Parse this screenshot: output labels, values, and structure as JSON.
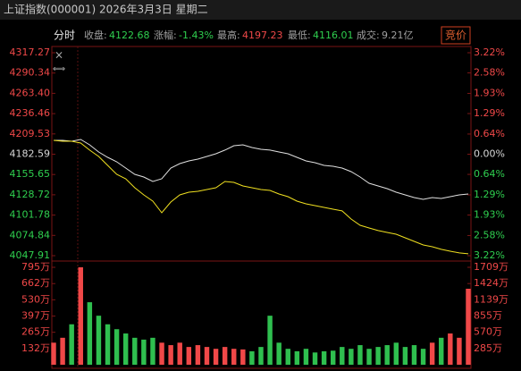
{
  "header": {
    "title": "上证指数(000001) 2026年3月3日 星期二"
  },
  "info": {
    "mode": "分时",
    "close_label": "收盘:",
    "close": "4122.68",
    "change_label": "涨幅:",
    "change": "-1.43%",
    "high_label": "最高:",
    "high": "4197.23",
    "low_label": "最低:",
    "low": "4116.01",
    "turnover_label": "成交:",
    "turnover": "9.21亿",
    "auction": "竞价"
  },
  "chart_data": [
    {
      "type": "line",
      "ylim": [
        4047.91,
        4317.27
      ],
      "yticks": [
        4317.27,
        4290.34,
        {
          "value": 4263.4,
          "label": "4263.40"
        },
        4236.46,
        4209.53,
        4182.59,
        4155.65,
        4128.72,
        4101.78,
        4074.84,
        4047.91
      ],
      "y2lim": [
        -3.22,
        3.22
      ],
      "y2ticks": [
        {
          "value": 3.22,
          "label": "3.22%"
        },
        {
          "value": 2.58,
          "label": "2.58%"
        },
        {
          "value": 1.93,
          "label": "1.93%"
        },
        {
          "value": 1.29,
          "label": "1.29%"
        },
        {
          "value": 0.64,
          "label": "0.64%"
        },
        {
          "value": 0,
          "label": "0.00%"
        },
        {
          "value": -0.64,
          "label": "0.64%"
        },
        {
          "value": -1.29,
          "label": "1.29%"
        },
        {
          "value": -1.93,
          "label": "1.93%"
        },
        {
          "value": -2.58,
          "label": "2.58%"
        },
        {
          "value": -3.22,
          "label": "3.22%"
        }
      ],
      "up_color": "#f04848",
      "down_color": "#2fcf4f",
      "flat_color": "#d8d8d8",
      "series": [
        {
          "color": "#e0e0e0",
          "values": [
            4200.98,
            4200.98,
            4199.8,
            4202.2,
            4195.0,
            4185.6,
            4178.4,
            4172.5,
            4164.2,
            4155.9,
            4152.3,
            4146.4,
            4150.0,
            4164.2,
            4170.1,
            4173.7,
            4176.1,
            4179.6,
            4183.2,
            4188.0,
            4193.9,
            4195.0,
            4191.5,
            4189.1,
            4188.0,
            4185.6,
            4183.2,
            4178.4,
            4173.7,
            4171.3,
            4167.8,
            4166.6,
            4164.2,
            4159.4,
            4152.3,
            4144.0,
            4140.5,
            4136.9,
            4132.2,
            4128.6,
            4125.0,
            4122.7,
            4125.0,
            4123.8,
            4126.2,
            4128.6,
            4129.8
          ]
        },
        {
          "color": "#f0e020",
          "values": [
            4200.98,
            4199.8,
            4199.8,
            4197.4,
            4188.0,
            4179.6,
            4167.8,
            4155.9,
            4150.0,
            4138.1,
            4128.6,
            4120.3,
            4104.9,
            4119.1,
            4128.6,
            4132.2,
            4133.3,
            4135.7,
            4138.1,
            4146.4,
            4145.2,
            4140.5,
            4138.1,
            4135.7,
            4134.5,
            4129.8,
            4126.2,
            4120.3,
            4116.7,
            4114.4,
            4112.0,
            4109.6,
            4107.3,
            4096.6,
            4088.3,
            4084.7,
            4081.2,
            4078.8,
            4076.4,
            4071.7,
            4066.9,
            4062.2,
            4059.8,
            4056.3,
            4053.9,
            4051.6,
            4050.4
          ]
        }
      ]
    },
    {
      "type": "bar",
      "ylim": [
        0,
        795
      ],
      "yticks": [
        {
          "value": 795,
          "label": "795万"
        },
        {
          "value": 662,
          "label": "662万"
        },
        {
          "value": 530,
          "label": "530万"
        },
        {
          "value": 397,
          "label": "397万"
        },
        {
          "value": 265,
          "label": "265万"
        },
        {
          "value": 132,
          "label": "132万"
        }
      ],
      "y2lim": [
        0,
        1709
      ],
      "y2ticks": [
        {
          "value": 1709,
          "label": "1709万"
        },
        {
          "value": 1424,
          "label": "1424万"
        },
        {
          "value": 1139,
          "label": "1139万"
        },
        {
          "value": 855,
          "label": "855万"
        },
        {
          "value": 570,
          "label": "570万"
        },
        {
          "value": 285,
          "label": "285万"
        }
      ],
      "up_color": "#f04848",
      "down_color": "#2fbf4f",
      "values": [
        180,
        220,
        330,
        795,
        510,
        400,
        330,
        290,
        255,
        220,
        205,
        220,
        180,
        160,
        180,
        145,
        160,
        145,
        130,
        145,
        130,
        125,
        110,
        145,
        400,
        180,
        130,
        110,
        130,
        100,
        110,
        115,
        145,
        130,
        160,
        130,
        145,
        160,
        180,
        145,
        160,
        130,
        180,
        220,
        255,
        220,
        620
      ]
    }
  ]
}
